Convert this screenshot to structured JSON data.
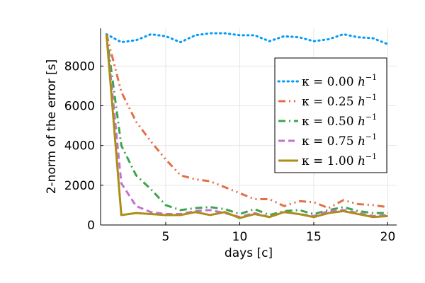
{
  "chart_data": {
    "type": "line",
    "title": "",
    "xlabel": "days [c]",
    "ylabel": "2-norm of the error [s]",
    "xlim": [
      0.6,
      20.6
    ],
    "ylim": [
      0,
      9900
    ],
    "x_ticks": [
      5,
      10,
      15,
      20
    ],
    "y_ticks": [
      0,
      2000,
      4000,
      6000,
      8000
    ],
    "grid": true,
    "legend_position": "right",
    "x": [
      1,
      2,
      3,
      4,
      5,
      6,
      7,
      8,
      9,
      10,
      11,
      12,
      13,
      14,
      15,
      16,
      17,
      18,
      19,
      20
    ],
    "series": [
      {
        "name": "κ = 0.00 h⁻¹",
        "name_base": "κ = 0.00",
        "name_unit": "h",
        "name_exp": "−1",
        "color": "#009AFA",
        "dash": "dot",
        "values": [
          9600,
          9200,
          9300,
          9600,
          9500,
          9200,
          9550,
          9650,
          9650,
          9550,
          9550,
          9250,
          9500,
          9450,
          9250,
          9350,
          9600,
          9450,
          9400,
          9100
        ]
      },
      {
        "name": "κ = 0.25 h⁻¹",
        "name_base": "κ = 0.25",
        "name_unit": "h",
        "name_exp": "−1",
        "color": "#E36F47",
        "dash": "dashdotdot",
        "values": [
          9600,
          6700,
          5200,
          4200,
          3300,
          2500,
          2300,
          2200,
          1900,
          1600,
          1300,
          1300,
          950,
          1200,
          1150,
          850,
          1250,
          1050,
          1000,
          900
        ]
      },
      {
        "name": "κ = 0.50 h⁻¹",
        "name_base": "κ = 0.50",
        "name_unit": "h",
        "name_exp": "−1",
        "color": "#3EA44E",
        "dash": "dashdot",
        "values": [
          9600,
          4000,
          2500,
          1800,
          1000,
          750,
          850,
          900,
          800,
          550,
          800,
          500,
          700,
          750,
          550,
          750,
          900,
          700,
          600,
          600
        ]
      },
      {
        "name": "κ = 0.75 h⁻¹",
        "name_base": "κ = 0.75",
        "name_unit": "h",
        "name_exp": "−1",
        "color": "#C271D2",
        "dash": "dash",
        "values": [
          9600,
          2100,
          950,
          650,
          550,
          550,
          700,
          750,
          600,
          400,
          600,
          400,
          650,
          550,
          450,
          700,
          750,
          600,
          450,
          500
        ]
      },
      {
        "name": "κ = 1.00 h⁻¹",
        "name_base": "κ = 1.00",
        "name_unit": "h",
        "name_exp": "−1",
        "color": "#AC8D18",
        "dash": "solid",
        "values": [
          9600,
          500,
          600,
          550,
          500,
          500,
          650,
          500,
          650,
          350,
          550,
          400,
          650,
          550,
          400,
          600,
          700,
          550,
          400,
          450
        ]
      }
    ]
  }
}
